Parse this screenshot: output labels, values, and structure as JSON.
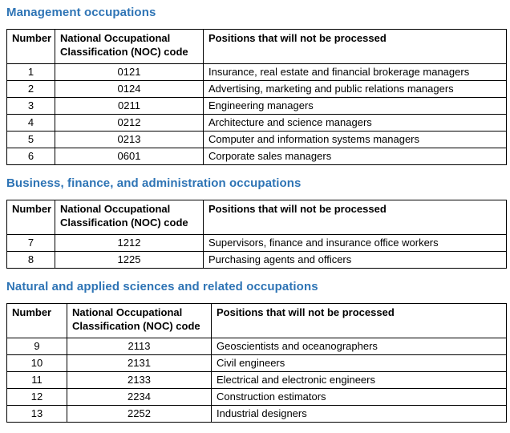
{
  "colors": {
    "heading": "#2E74B5",
    "table_border": "#000000",
    "text": "#000000",
    "background": "#FFFFFF"
  },
  "sections": [
    {
      "heading": "Management occupations",
      "columns": [
        "Number",
        "National Occupational Classification (NOC) code",
        "Positions that will not be processed"
      ],
      "rows": [
        [
          "1",
          "0121",
          "Insurance, real estate and financial brokerage managers"
        ],
        [
          "2",
          "0124",
          "Advertising, marketing and public relations managers"
        ],
        [
          "3",
          "0211",
          "Engineering managers"
        ],
        [
          "4",
          "0212",
          "Architecture and science managers"
        ],
        [
          "5",
          "0213",
          "Computer and information systems managers"
        ],
        [
          "6",
          "0601",
          "Corporate sales managers"
        ]
      ]
    },
    {
      "heading": "Business, finance, and administration occupations",
      "columns": [
        "Number",
        "National Occupational Classification (NOC) code",
        "Positions that will not be processed"
      ],
      "rows": [
        [
          "7",
          "1212",
          "Supervisors, finance and insurance office workers"
        ],
        [
          "8",
          "1225",
          "Purchasing agents and officers"
        ]
      ]
    },
    {
      "heading": "Natural and applied sciences and related occupations",
      "columns": [
        "Number",
        "National Occupational Classification (NOC) code",
        "Positions that will not be processed"
      ],
      "rows": [
        [
          "9",
          "2113",
          "Geoscientists and oceanographers"
        ],
        [
          "10",
          "2131",
          "Civil engineers"
        ],
        [
          "11",
          "2133",
          "Electrical and electronic engineers"
        ],
        [
          "12",
          "2234",
          "Construction estimators"
        ],
        [
          "13",
          "2252",
          "Industrial designers"
        ]
      ]
    }
  ]
}
